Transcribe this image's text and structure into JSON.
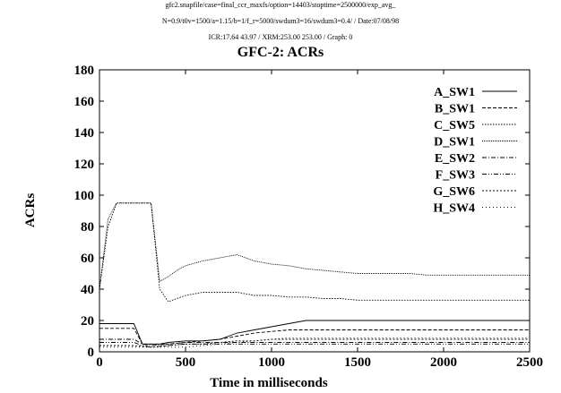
{
  "header": {
    "line1": "gfc2.snapfile/case=final_ccr_maxfs/option=14403/stoptime=2500000/exp_avg_",
    "line2": "N=0.9/t0v=1500/a=1.15/b=1/f_r=5000/swdum3=16/swdum3=0.4/ / Date:07/08/98",
    "line3": "ICR:17.64 43.97 / XRM:253.00 253.00 / Graph: 0"
  },
  "chart_data": {
    "type": "line",
    "title": "GFC-2: ACRs",
    "xlabel": "Time in milliseconds",
    "ylabel": "ACRs",
    "xlim": [
      0,
      2500
    ],
    "ylim": [
      0,
      180
    ],
    "xticks": [
      0,
      500,
      1000,
      1500,
      2000,
      2500
    ],
    "yticks": [
      0,
      20,
      40,
      60,
      80,
      100,
      120,
      140,
      160,
      180
    ],
    "legend_position": "top-right",
    "series": [
      {
        "name": "A_SW1",
        "dash": "solid",
        "x": [
          0,
          50,
          100,
          150,
          200,
          250,
          300,
          350,
          400,
          500,
          600,
          700,
          750,
          800,
          900,
          1000,
          1100,
          1200,
          1300,
          1400,
          1500,
          1600,
          1700,
          1800,
          1900,
          2000,
          2100,
          2200,
          2300,
          2400,
          2500
        ],
        "y": [
          18,
          18,
          18,
          18,
          18,
          5,
          5,
          5,
          6,
          7,
          7,
          8,
          10,
          12,
          14,
          16,
          18,
          20,
          20,
          20,
          20,
          20,
          20,
          20,
          20,
          20,
          20,
          20,
          20,
          20,
          20
        ]
      },
      {
        "name": "B_SW1",
        "dash": "dashed",
        "x": [
          0,
          50,
          100,
          150,
          200,
          250,
          300,
          350,
          400,
          500,
          600,
          700,
          800,
          900,
          1000,
          1100,
          1200,
          1300,
          1400,
          1500,
          1600,
          1700,
          1800,
          1900,
          2000,
          2100,
          2200,
          2300,
          2400,
          2500
        ],
        "y": [
          15,
          15,
          15,
          15,
          15,
          5,
          5,
          5,
          5,
          6,
          7,
          8,
          10,
          12,
          13,
          14,
          14,
          14,
          14,
          14,
          14,
          14,
          14,
          14,
          14,
          14,
          14,
          14,
          14,
          14
        ]
      },
      {
        "name": "C_SW5",
        "dash": "dotted",
        "x": [
          0,
          50,
          100,
          150,
          200,
          250,
          300,
          350,
          400,
          450,
          500,
          600,
          700,
          800,
          900,
          1000,
          1100,
          1200,
          1300,
          1400,
          1500,
          1600,
          1700,
          1800,
          1900,
          2000,
          2100,
          2200,
          2300,
          2400,
          2500
        ],
        "y": [
          40,
          80,
          95,
          95,
          95,
          95,
          95,
          40,
          32,
          34,
          36,
          38,
          38,
          38,
          36,
          36,
          35,
          35,
          34,
          34,
          33,
          33,
          33,
          33,
          33,
          33,
          33,
          33,
          33,
          33,
          33
        ]
      },
      {
        "name": "D_SW1",
        "dash": "fine-dotted",
        "x": [
          0,
          50,
          100,
          150,
          200,
          250,
          300,
          350,
          400,
          450,
          500,
          600,
          700,
          800,
          900,
          1000,
          1100,
          1200,
          1300,
          1400,
          1500,
          1600,
          1700,
          1800,
          1900,
          2000,
          2100,
          2200,
          2300,
          2400,
          2500
        ],
        "y": [
          40,
          85,
          95,
          95,
          95,
          95,
          95,
          45,
          48,
          52,
          55,
          58,
          60,
          62,
          58,
          56,
          55,
          53,
          52,
          51,
          50,
          50,
          50,
          50,
          49,
          49,
          49,
          49,
          49,
          49,
          49
        ]
      },
      {
        "name": "E_SW2",
        "dash": "dash-dot",
        "x": [
          0,
          100,
          200,
          250,
          300,
          400,
          500,
          600,
          700,
          800,
          900,
          1000,
          1100,
          1200,
          1300,
          1400,
          1500,
          1600,
          1700,
          1800,
          1900,
          2000,
          2100,
          2200,
          2300,
          2400,
          2500
        ],
        "y": [
          8,
          8,
          8,
          5,
          4,
          5,
          6,
          6,
          6,
          6,
          6,
          6,
          6,
          6,
          6,
          6,
          6,
          6,
          6,
          6,
          6,
          6,
          6,
          6,
          6,
          6,
          6
        ]
      },
      {
        "name": "F_SW3",
        "dash": "dash-dot-dot",
        "x": [
          0,
          100,
          200,
          250,
          300,
          400,
          500,
          600,
          700,
          800,
          900,
          1000,
          1100,
          1200,
          1300,
          1400,
          1500,
          1600,
          1700,
          1800,
          1900,
          2000,
          2100,
          2200,
          2300,
          2400,
          2500
        ],
        "y": [
          6,
          6,
          6,
          4,
          3,
          4,
          5,
          5,
          5,
          5,
          5,
          5,
          5,
          5,
          5,
          5,
          5,
          5,
          5,
          5,
          5,
          5,
          5,
          5,
          5,
          5,
          5
        ]
      },
      {
        "name": "G_SW6",
        "dash": "short-dashed",
        "x": [
          0,
          100,
          200,
          300,
          400,
          500,
          600,
          700,
          800,
          900,
          1000,
          1100,
          1200,
          1300,
          1400,
          1500,
          1600,
          1700,
          1800,
          1900,
          2000,
          2100,
          2200,
          2300,
          2400,
          2500
        ],
        "y": [
          4,
          4,
          4,
          3,
          4,
          5,
          5,
          6,
          7,
          7,
          8,
          8,
          8,
          8,
          8,
          8,
          8,
          8,
          8,
          8,
          8,
          8,
          8,
          8,
          8,
          8
        ]
      },
      {
        "name": "H_SW4",
        "dash": "long-dotted",
        "x": [
          0,
          100,
          200,
          300,
          400,
          500,
          600,
          700,
          800,
          900,
          1000,
          1100,
          1200,
          1300,
          1400,
          1500,
          1600,
          1700,
          1800,
          1900,
          2000,
          2100,
          2200,
          2300,
          2400,
          2500
        ],
        "y": [
          3,
          3,
          3,
          3,
          3,
          3,
          4,
          5,
          6,
          7,
          8,
          9,
          9,
          9,
          9,
          9,
          9,
          9,
          9,
          9,
          9,
          9,
          9,
          9,
          9,
          9
        ]
      }
    ]
  }
}
